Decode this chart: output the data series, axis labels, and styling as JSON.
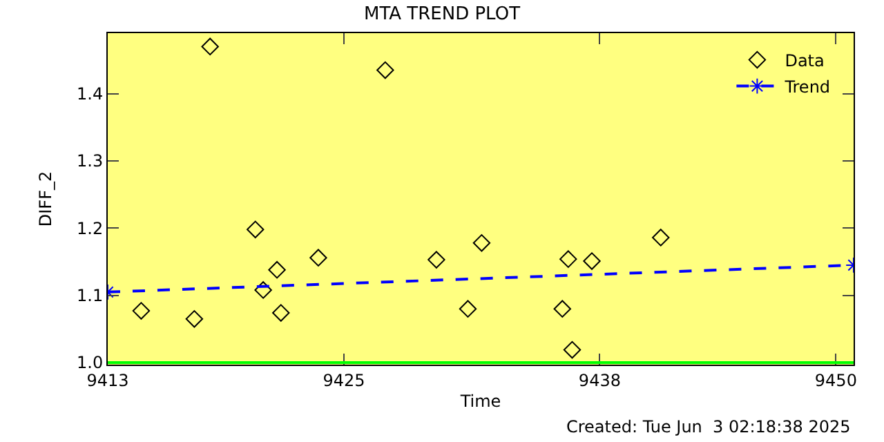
{
  "chart_data": {
    "type": "scatter",
    "title": "MTA TREND PLOT",
    "xlabel": "Time",
    "ylabel": "DIFF_2",
    "annotations": [
      "Created: Tue Jun  3 02:18:38 2025"
    ],
    "xlim": [
      9413,
      9450.9
    ],
    "xticks": [
      9413,
      9425,
      9438,
      9450
    ],
    "ylim": [
      0.997,
      1.49
    ],
    "yticks": [
      {
        "value": 1.0,
        "label": "1.0"
      },
      1.1,
      1.2,
      1.3,
      1.4
    ],
    "grid": false,
    "legend": "top right",
    "ref_lines": [
      {
        "axis": "y",
        "value": 1.0,
        "color": "#00ff00"
      }
    ],
    "series": [
      {
        "name": "Data",
        "type": "scatter",
        "marker": "diamond",
        "color": "#000000",
        "x": [
          9414.7,
          9417.4,
          9418.2,
          9420.5,
          9420.9,
          9421.6,
          9421.8,
          9423.7,
          9427.1,
          9429.7,
          9431.3,
          9432.0,
          9436.1,
          9436.4,
          9436.6,
          9437.6,
          9441.1
        ],
        "values": [
          1.077,
          1.065,
          1.47,
          1.198,
          1.108,
          1.138,
          1.074,
          1.156,
          1.435,
          1.153,
          1.08,
          1.178,
          1.08,
          1.154,
          1.019,
          1.151,
          1.186
        ]
      },
      {
        "name": "Trend",
        "type": "line",
        "marker": "cross",
        "line_style": "dashed",
        "color": "#0000ff",
        "x": [
          9413,
          9450.9
        ],
        "values": [
          1.105,
          1.145
        ]
      }
    ]
  }
}
